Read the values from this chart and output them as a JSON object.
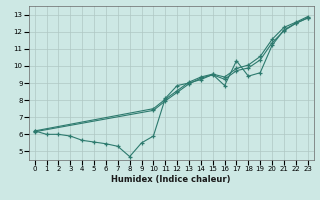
{
  "xlabel": "Humidex (Indice chaleur)",
  "ylabel": "",
  "bg_color": "#cde8e4",
  "grid_color": "#b0c8c4",
  "line_color": "#2d7a6e",
  "xlim": [
    -0.5,
    23.5
  ],
  "ylim": [
    4.5,
    13.5
  ],
  "xticks": [
    0,
    1,
    2,
    3,
    4,
    5,
    6,
    7,
    8,
    9,
    10,
    11,
    12,
    13,
    14,
    15,
    16,
    17,
    18,
    19,
    20,
    21,
    22,
    23
  ],
  "yticks": [
    5,
    6,
    7,
    8,
    9,
    10,
    11,
    12,
    13
  ],
  "line1_x": [
    0,
    1,
    2,
    3,
    4,
    5,
    6,
    7,
    8,
    9,
    10,
    11,
    12,
    13,
    14,
    15,
    16,
    17,
    18,
    19,
    20,
    21,
    22,
    23
  ],
  "line1_y": [
    6.2,
    6.0,
    6.0,
    5.9,
    5.65,
    5.55,
    5.45,
    5.3,
    4.7,
    5.5,
    5.9,
    8.1,
    8.85,
    9.0,
    9.2,
    9.5,
    8.85,
    10.3,
    9.4,
    9.6,
    11.2,
    12.1,
    12.5,
    12.8
  ],
  "line2_x": [
    0,
    10,
    11,
    12,
    13,
    14,
    15,
    16,
    17,
    18,
    19,
    20,
    21,
    22,
    23
  ],
  "line2_y": [
    6.2,
    7.5,
    8.05,
    8.55,
    9.05,
    9.35,
    9.52,
    9.35,
    9.85,
    10.05,
    10.55,
    11.55,
    12.25,
    12.55,
    12.88
  ],
  "line3_x": [
    0,
    10,
    11,
    12,
    13,
    14,
    15,
    16,
    17,
    18,
    19,
    20,
    21,
    22,
    23
  ],
  "line3_y": [
    6.15,
    7.4,
    7.95,
    8.45,
    8.95,
    9.28,
    9.48,
    9.22,
    9.72,
    9.88,
    10.35,
    11.35,
    12.05,
    12.48,
    12.8
  ]
}
